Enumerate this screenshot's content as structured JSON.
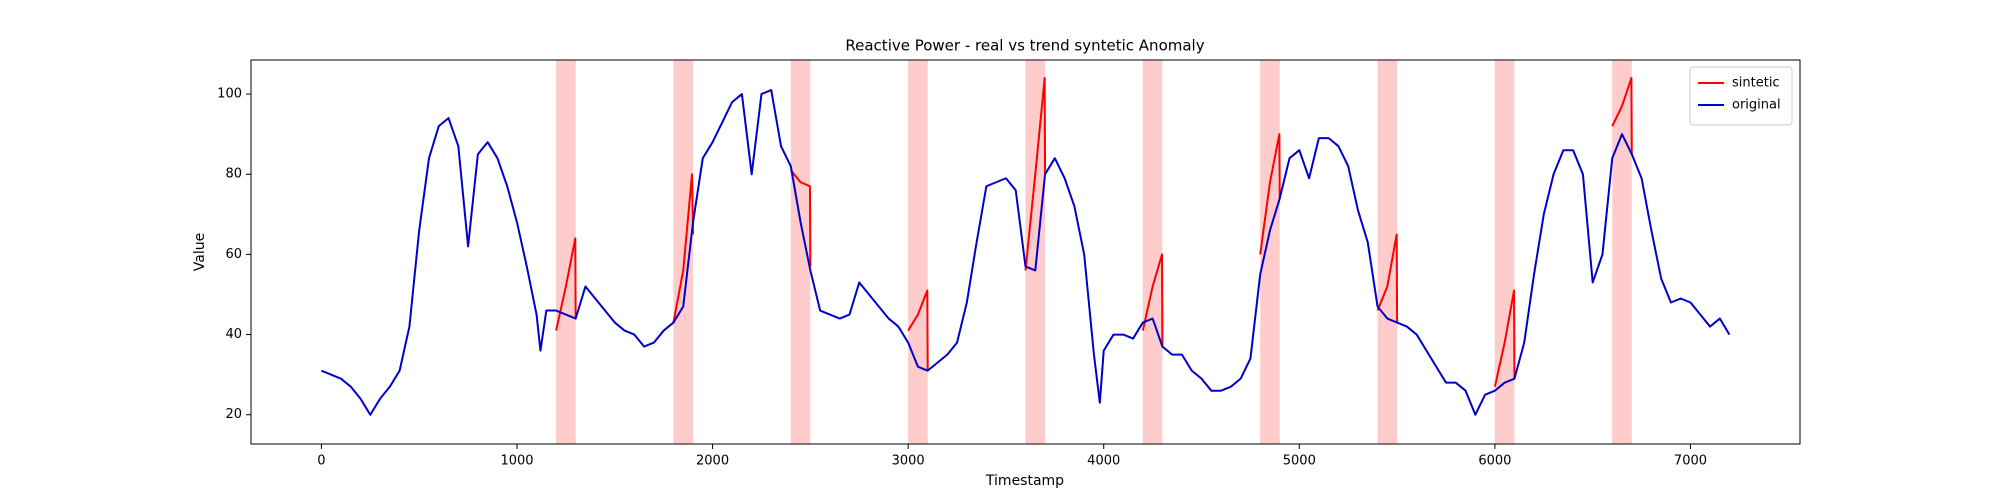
{
  "chart_data": {
    "type": "line",
    "title": "Reactive Power - real vs trend syntetic Anomaly",
    "x_label": "Timestamp",
    "y_label": "Value",
    "xlim": [
      -360,
      7560
    ],
    "ylim": [
      12.7,
      108.5
    ],
    "xticks": [
      0,
      1000,
      2000,
      3000,
      4000,
      5000,
      6000,
      7000
    ],
    "yticks": [
      20,
      40,
      60,
      80,
      100
    ],
    "legend": "upper right",
    "shaded_regions": [
      [
        1200,
        1300
      ],
      [
        1800,
        1900
      ],
      [
        2400,
        2500
      ],
      [
        3000,
        3100
      ],
      [
        3600,
        3700
      ],
      [
        4200,
        4300
      ],
      [
        4800,
        4900
      ],
      [
        5400,
        5500
      ],
      [
        6000,
        6100
      ],
      [
        6600,
        6700
      ]
    ],
    "shade_color": "#ff8080",
    "series": [
      {
        "name": "sintetic",
        "color": "#ff0000",
        "x": [
          1200,
          1250,
          1298,
          1300,
          1500,
          1800,
          1850,
          1895,
          1900,
          2100,
          2400,
          2450,
          2498,
          2500,
          2700,
          3000,
          3050,
          3098,
          3100,
          3300,
          3600,
          3650,
          3698,
          3700,
          3900,
          4200,
          4250,
          4298,
          4300,
          4500,
          4800,
          4850,
          4898,
          4900,
          5100,
          5400,
          5450,
          5498,
          5500,
          5700,
          6000,
          6050,
          6098,
          6100,
          6300,
          6600,
          6650,
          6698,
          6700
        ],
        "values": [
          41,
          52,
          64,
          44,
          null,
          43,
          56,
          80,
          65,
          null,
          81,
          78,
          77,
          57,
          null,
          41,
          45,
          51,
          31,
          null,
          56,
          80,
          104,
          80,
          null,
          41,
          52,
          60,
          37,
          null,
          60,
          78,
          90,
          74,
          null,
          46,
          52,
          65,
          43,
          null,
          27,
          38,
          51,
          29,
          null,
          92,
          97,
          104,
          85
        ]
      },
      {
        "name": "original",
        "color": "#0000cc",
        "x": [
          0,
          50,
          100,
          150,
          200,
          250,
          300,
          350,
          400,
          450,
          500,
          550,
          600,
          650,
          700,
          750,
          800,
          850,
          900,
          950,
          1000,
          1050,
          1100,
          1120,
          1150,
          1200,
          1250,
          1300,
          1350,
          1400,
          1450,
          1500,
          1550,
          1600,
          1650,
          1700,
          1750,
          1800,
          1850,
          1900,
          1950,
          2000,
          2050,
          2100,
          2150,
          2200,
          2250,
          2300,
          2350,
          2400,
          2450,
          2500,
          2550,
          2600,
          2650,
          2700,
          2750,
          2800,
          2850,
          2900,
          2950,
          3000,
          3050,
          3100,
          3150,
          3200,
          3250,
          3300,
          3350,
          3400,
          3450,
          3500,
          3550,
          3600,
          3650,
          3700,
          3750,
          3800,
          3850,
          3900,
          3950,
          3980,
          4000,
          4050,
          4100,
          4150,
          4200,
          4250,
          4300,
          4350,
          4400,
          4450,
          4500,
          4550,
          4600,
          4650,
          4700,
          4750,
          4800,
          4850,
          4900,
          4950,
          5000,
          5050,
          5100,
          5150,
          5200,
          5250,
          5300,
          5350,
          5400,
          5450,
          5500,
          5550,
          5600,
          5650,
          5700,
          5750,
          5800,
          5850,
          5900,
          5950,
          6000,
          6050,
          6100,
          6150,
          6200,
          6250,
          6300,
          6350,
          6400,
          6450,
          6500,
          6550,
          6600,
          6650,
          6700,
          6750,
          6800,
          6850,
          6900,
          6950,
          7000,
          7050,
          7100,
          7150,
          7199
        ],
        "values": [
          31,
          30,
          29,
          27,
          24,
          20,
          24,
          27,
          31,
          42,
          66,
          84,
          92,
          94,
          87,
          62,
          85,
          88,
          84,
          77,
          68,
          57,
          45,
          36,
          46,
          46,
          45,
          44,
          52,
          49,
          46,
          43,
          41,
          40,
          37,
          38,
          41,
          43,
          47,
          68,
          84,
          88,
          93,
          98,
          100,
          80,
          100,
          101,
          87,
          82,
          68,
          56,
          46,
          45,
          44,
          45,
          53,
          50,
          47,
          44,
          42,
          38,
          32,
          31,
          33,
          35,
          38,
          48,
          63,
          77,
          78,
          79,
          76,
          57,
          56,
          80,
          84,
          79,
          72,
          60,
          35,
          23,
          36,
          40,
          40,
          39,
          43,
          44,
          37,
          35,
          35,
          31,
          29,
          26,
          26,
          27,
          29,
          34,
          55,
          66,
          74,
          84,
          86,
          79,
          89,
          89,
          87,
          82,
          71,
          63,
          47,
          44,
          43,
          42,
          40,
          36,
          32,
          28,
          28,
          26,
          20,
          25,
          26,
          28,
          29,
          38,
          55,
          70,
          80,
          86,
          86,
          80,
          53,
          60,
          84,
          90,
          85,
          79,
          66,
          54,
          48,
          49,
          48,
          45,
          42,
          44,
          40
        ]
      }
    ]
  }
}
